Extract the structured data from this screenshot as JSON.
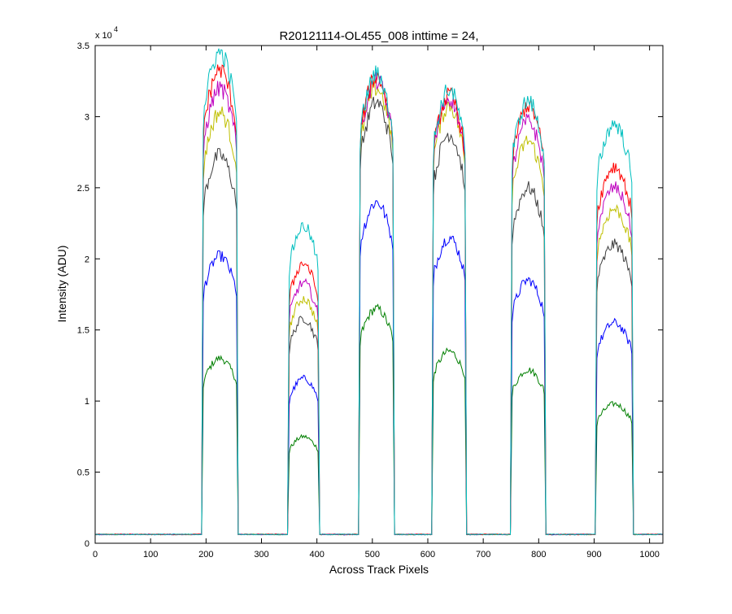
{
  "figure": {
    "background": "#ffffff"
  },
  "chart_data": {
    "type": "line",
    "title": "R20121114-OL455_008 inttime = 24,",
    "xlabel": "Across Track Pixels",
    "ylabel": "Intensity (ADU)",
    "y_multiplier": "x 10",
    "y_multiplier_exponent": "4",
    "xlim": [
      0,
      1024
    ],
    "ylim": [
      0,
      35000
    ],
    "xticks": [
      0,
      100,
      200,
      300,
      400,
      500,
      600,
      700,
      800,
      900,
      1000
    ],
    "xtick_labels": [
      "0",
      "100",
      "200",
      "300",
      "400",
      "500",
      "600",
      "700",
      "800",
      "900",
      "1000"
    ],
    "yticks": [
      0,
      5000,
      10000,
      15000,
      20000,
      25000,
      30000,
      35000
    ],
    "ytick_labels": [
      "0",
      "0.5",
      "1",
      "1.5",
      "2",
      "2.5",
      "3",
      "3.5"
    ],
    "grid": false,
    "background_level": 620,
    "segments": [
      {
        "x_start": 195,
        "x_end": 255
      },
      {
        "x_start": 350,
        "x_end": 402
      },
      {
        "x_start": 478,
        "x_end": 537
      },
      {
        "x_start": 610,
        "x_end": 667
      },
      {
        "x_start": 752,
        "x_end": 810
      },
      {
        "x_start": 905,
        "x_end": 968
      }
    ],
    "series": [
      {
        "color": "#007f00",
        "plateau": [
          13000,
          7500,
          16500,
          13500,
          12200,
          9800
        ]
      },
      {
        "color": "#0000ff",
        "plateau": [
          20200,
          11600,
          24000,
          21500,
          18500,
          15500
        ]
      },
      {
        "color": "#3f3f3f",
        "plateau": [
          27300,
          15800,
          31000,
          28800,
          25000,
          21000
        ]
      },
      {
        "color": "#bfbf00",
        "plateau": [
          30300,
          17200,
          32000,
          30800,
          28300,
          23500
        ]
      },
      {
        "color": "#bf00bf",
        "plateau": [
          32000,
          18300,
          32500,
          31300,
          29700,
          25000
        ]
      },
      {
        "color": "#ff0000",
        "plateau": [
          33300,
          19700,
          32800,
          31500,
          30800,
          26500
        ]
      },
      {
        "color": "#00bfbf",
        "plateau": [
          34500,
          22300,
          33000,
          31900,
          31100,
          29500
        ]
      }
    ]
  }
}
